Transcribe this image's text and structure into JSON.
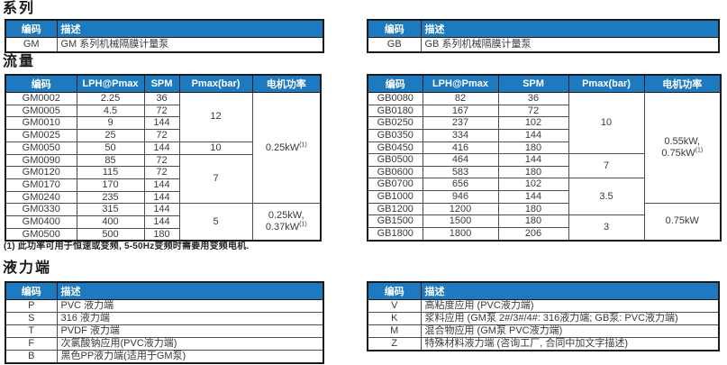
{
  "colors": {
    "header_bg": "#1e7ac0",
    "header_text": "#ffffff",
    "border_outer": "#1a1a1a",
    "border_inner": "#4d4d4d",
    "body_text": "#3a3a3a"
  },
  "series": {
    "heading": "系列",
    "columns": [
      "编码",
      "描述"
    ],
    "left": {
      "rows": [
        [
          "GM",
          "GM 系列机械隔膜计量泵"
        ]
      ]
    },
    "right": {
      "rows": [
        [
          "GB",
          "GB 系列机械隔膜计量泵"
        ]
      ]
    }
  },
  "flow": {
    "heading": "流量",
    "columns": [
      "编码",
      "LPH@Pmax",
      "SPM",
      "Pmax(bar)",
      "电机功率"
    ],
    "footnote": "(1) 此功率可用于恒速或变频, 5-50Hz变频时需要用变频电机.",
    "left": {
      "rows": [
        {
          "code": "GM0002",
          "lph": "2.25",
          "spm": "36",
          "pmax": {
            "text": "12",
            "rows": 4
          },
          "power": {
            "lines": [
              "0.25kW"
            ],
            "sup": "(1)",
            "rows": 9
          }
        },
        {
          "code": "GM0005",
          "lph": "4.5",
          "spm": "72"
        },
        {
          "code": "GM0010",
          "lph": "9",
          "spm": "144"
        },
        {
          "code": "GM0025",
          "lph": "25",
          "spm": "72"
        },
        {
          "code": "GM0050",
          "lph": "50",
          "spm": "144",
          "pmax": {
            "text": "10",
            "rows": 1
          }
        },
        {
          "code": "GM0090",
          "lph": "85",
          "spm": "72",
          "pmax": {
            "text": "7",
            "rows": 4
          }
        },
        {
          "code": "GM0120",
          "lph": "115",
          "spm": "72"
        },
        {
          "code": "GM0170",
          "lph": "170",
          "spm": "144"
        },
        {
          "code": "GM0240",
          "lph": "235",
          "spm": "144"
        },
        {
          "code": "GM0330",
          "lph": "315",
          "spm": "144",
          "pmax": {
            "text": "5",
            "rows": 3
          },
          "power": {
            "lines": [
              "0.25kW,",
              "0.37kW"
            ],
            "sup": "(1)",
            "rows": 3
          }
        },
        {
          "code": "GM0400",
          "lph": "400",
          "spm": "144"
        },
        {
          "code": "GM0500",
          "lph": "500",
          "spm": "180"
        }
      ]
    },
    "right": {
      "rows": [
        {
          "code": "GB0080",
          "lph": "82",
          "spm": "36",
          "pmax": {
            "text": "10",
            "rows": 5
          },
          "power": {
            "lines": [
              "0.55kW,",
              "0.75kW"
            ],
            "sup": "(1)",
            "rows": 9
          }
        },
        {
          "code": "GB0180",
          "lph": "167",
          "spm": "72"
        },
        {
          "code": "GB0250",
          "lph": "237",
          "spm": "102"
        },
        {
          "code": "GB0350",
          "lph": "334",
          "spm": "144"
        },
        {
          "code": "GB0450",
          "lph": "416",
          "spm": "180"
        },
        {
          "code": "GB0500",
          "lph": "464",
          "spm": "144",
          "pmax": {
            "text": "7",
            "rows": 2
          }
        },
        {
          "code": "GB0600",
          "lph": "583",
          "spm": "180"
        },
        {
          "code": "GB0700",
          "lph": "656",
          "spm": "102",
          "pmax": {
            "text": "3.5",
            "rows": 3
          }
        },
        {
          "code": "GB1000",
          "lph": "946",
          "spm": "144"
        },
        {
          "code": "GB1200",
          "lph": "1200",
          "spm": "180",
          "power": {
            "lines": [
              "0.75kW"
            ],
            "rows": 3
          }
        },
        {
          "code": "GB1500",
          "lph": "1500",
          "spm": "180",
          "pmax": {
            "text": "3",
            "rows": 2
          }
        },
        {
          "code": "GB1800",
          "lph": "1800",
          "spm": "206"
        }
      ]
    }
  },
  "hydraulic": {
    "heading": "液力端",
    "columns": [
      "编码",
      "描述"
    ],
    "left": {
      "rows": [
        [
          "P",
          "PVC 液力端"
        ],
        [
          "S",
          "316 液力端"
        ],
        [
          "T",
          "PVDF 液力端"
        ],
        [
          "F",
          "次氯酸钠应用(PVC液力端)"
        ],
        [
          "B",
          "黑色PP液力端(适用于GM泵)"
        ]
      ]
    },
    "right": {
      "rows": [
        [
          "V",
          "高粘度应用 (PVC液力端)"
        ],
        [
          "K",
          "浆料应用 (GM泵 2#/3#/4#: 316液力端; GB泵: PVC液力端)"
        ],
        [
          "M",
          "混合物应用 (GM泵 PVC液力端)"
        ],
        [
          "Z",
          "特殊材料液力端 (咨询工厂, 合同中加文字描述)"
        ]
      ]
    }
  }
}
